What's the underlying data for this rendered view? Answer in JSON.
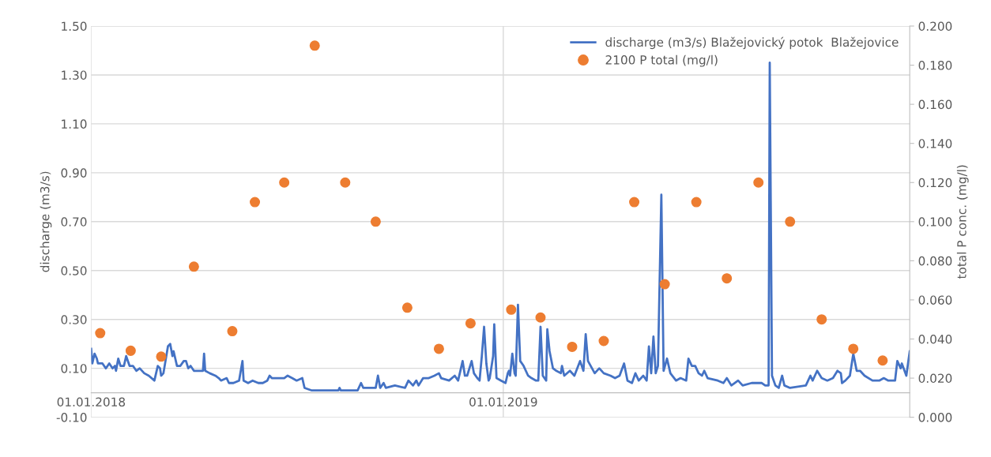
{
  "chart_data": {
    "type": "line",
    "ylabel": "discharge (m3/s)",
    "y2label": "total P conc. (mg/l)",
    "xlim": [
      "2018-01-01",
      "2019-12-27"
    ],
    "xticks": [
      {
        "value": "2018-01-01",
        "label": "01.01.2018"
      },
      {
        "value": "2019-01-01",
        "label": "01.01.2019"
      }
    ],
    "ylim": [
      -0.1,
      1.5
    ],
    "yticks": [
      {
        "value": -0.1,
        "label": "-0.10"
      },
      {
        "value": 0.1,
        "label": "0.10"
      },
      {
        "value": 0.3,
        "label": "0.30"
      },
      {
        "value": 0.5,
        "label": "0.50"
      },
      {
        "value": 0.7,
        "label": "0.70"
      },
      {
        "value": 0.9,
        "label": "0.90"
      },
      {
        "value": 1.1,
        "label": "1.10"
      },
      {
        "value": 1.3,
        "label": "1.30"
      },
      {
        "value": 1.5,
        "label": "1.50"
      }
    ],
    "y2lim": [
      0,
      0.2
    ],
    "y2ticks": [
      {
        "value": 0,
        "label": "0.000"
      },
      {
        "value": 0.02,
        "label": "0.020"
      },
      {
        "value": 0.04,
        "label": "0.040"
      },
      {
        "value": 0.06,
        "label": "0.060"
      },
      {
        "value": 0.08,
        "label": "0.080"
      },
      {
        "value": 0.1,
        "label": "0.100"
      },
      {
        "value": 0.12,
        "label": "0.120"
      },
      {
        "value": 0.14,
        "label": "0.140"
      },
      {
        "value": 0.16,
        "label": "0.160"
      },
      {
        "value": 0.18,
        "label": "0.180"
      },
      {
        "value": 0.2,
        "label": "0.200"
      }
    ],
    "grid": true,
    "legend": "top right",
    "series": [
      {
        "name": "discharge (m3/s) Blažejovický potok  Blažejovice",
        "color": "#4472c4",
        "marker": "none",
        "line_style": "solid",
        "x": [
          "2018-01-01",
          "2018-01-02",
          "2018-01-04",
          "2018-01-06",
          "2018-01-07",
          "2018-01-11",
          "2018-01-14",
          "2018-01-17",
          "2018-01-20",
          "2018-01-22",
          "2018-01-23",
          "2018-01-25",
          "2018-01-27",
          "2018-01-30",
          "2018-02-01",
          "2018-02-04",
          "2018-02-07",
          "2018-02-10",
          "2018-02-13",
          "2018-02-17",
          "2018-02-21",
          "2018-02-26",
          "2018-03-01",
          "2018-03-03",
          "2018-03-04",
          "2018-03-06",
          "2018-03-10",
          "2018-03-12",
          "2018-03-14",
          "2018-03-15",
          "2018-03-18",
          "2018-03-21",
          "2018-03-24",
          "2018-03-26",
          "2018-03-28",
          "2018-03-30",
          "2018-04-02",
          "2018-04-05",
          "2018-04-10",
          "2018-04-11",
          "2018-04-12",
          "2018-04-16",
          "2018-04-21",
          "2018-04-24",
          "2018-04-26",
          "2018-05-01",
          "2018-05-03",
          "2018-05-07",
          "2018-05-12",
          "2018-05-15",
          "2018-05-16",
          "2018-05-20",
          "2018-05-24",
          "2018-05-29",
          "2018-06-02",
          "2018-06-06",
          "2018-06-08",
          "2018-06-10",
          "2018-06-16",
          "2018-06-21",
          "2018-06-24",
          "2018-06-28",
          "2018-07-02",
          "2018-07-07",
          "2018-07-09",
          "2018-07-15",
          "2018-07-22",
          "2018-07-28",
          "2018-08-02",
          "2018-08-08",
          "2018-08-09",
          "2018-08-10",
          "2018-08-16",
          "2018-08-25",
          "2018-08-28",
          "2018-08-30",
          "2018-09-05",
          "2018-09-10",
          "2018-09-12",
          "2018-09-14",
          "2018-09-17",
          "2018-09-19",
          "2018-09-27",
          "2018-10-06",
          "2018-10-09",
          "2018-10-13",
          "2018-10-16",
          "2018-10-18",
          "2018-10-22",
          "2018-10-27",
          "2018-11-01",
          "2018-11-05",
          "2018-11-07",
          "2018-11-14",
          "2018-11-19",
          "2018-11-22",
          "2018-11-26",
          "2018-11-28",
          "2018-11-30",
          "2018-12-04",
          "2018-12-06",
          "2018-12-09",
          "2018-12-11",
          "2018-12-13",
          "2018-12-15",
          "2018-12-17",
          "2018-12-19",
          "2018-12-20",
          "2018-12-23",
          "2018-12-24",
          "2018-12-26",
          "2018-12-30",
          "2019-01-03",
          "2019-01-05",
          "2019-01-06",
          "2019-01-07",
          "2019-01-09",
          "2019-01-11",
          "2019-01-12",
          "2019-01-14",
          "2019-01-16",
          "2019-01-19",
          "2019-01-23",
          "2019-01-26",
          "2019-01-30",
          "2019-02-01",
          "2019-02-03",
          "2019-02-05",
          "2019-02-08",
          "2019-02-09",
          "2019-02-11",
          "2019-02-14",
          "2019-02-17",
          "2019-02-21",
          "2019-02-22",
          "2019-02-24",
          "2019-03-01",
          "2019-03-05",
          "2019-03-10",
          "2019-03-13",
          "2019-03-15",
          "2019-03-17",
          "2019-03-23",
          "2019-03-27",
          "2019-03-31",
          "2019-04-06",
          "2019-04-10",
          "2019-04-14",
          "2019-04-18",
          "2019-04-21",
          "2019-04-25",
          "2019-04-28",
          "2019-05-01",
          "2019-05-05",
          "2019-05-08",
          "2019-05-10",
          "2019-05-12",
          "2019-05-14",
          "2019-05-16",
          "2019-05-18",
          "2019-05-21",
          "2019-05-23",
          "2019-05-26",
          "2019-05-29",
          "2019-06-03",
          "2019-06-07",
          "2019-06-12",
          "2019-06-14",
          "2019-06-17",
          "2019-06-20",
          "2019-06-23",
          "2019-06-26",
          "2019-06-28",
          "2019-07-01",
          "2019-07-10",
          "2019-07-15",
          "2019-07-18",
          "2019-07-22",
          "2019-07-28",
          "2019-08-01",
          "2019-08-09",
          "2019-08-18",
          "2019-08-21",
          "2019-08-24",
          "2019-08-25",
          "2019-08-27",
          "2019-08-30",
          "2019-09-02",
          "2019-09-05",
          "2019-09-07",
          "2019-09-12",
          "2019-09-26",
          "2019-09-30",
          "2019-10-02",
          "2019-10-06",
          "2019-10-10",
          "2019-10-15",
          "2019-10-20",
          "2019-10-24",
          "2019-10-27",
          "2019-10-28",
          "2019-10-31",
          "2019-11-04",
          "2019-11-07",
          "2019-11-10",
          "2019-11-13",
          "2019-11-17",
          "2019-11-24",
          "2019-11-30",
          "2019-12-04",
          "2019-12-08",
          "2019-12-14",
          "2019-12-16",
          "2019-12-19",
          "2019-12-20",
          "2019-12-24",
          "2019-12-27"
        ],
        "values": [
          0.18,
          0.12,
          0.16,
          0.14,
          0.12,
          0.12,
          0.1,
          0.12,
          0.1,
          0.11,
          0.09,
          0.14,
          0.11,
          0.11,
          0.15,
          0.11,
          0.11,
          0.09,
          0.1,
          0.08,
          0.07,
          0.05,
          0.11,
          0.1,
          0.07,
          0.08,
          0.19,
          0.2,
          0.15,
          0.17,
          0.11,
          0.11,
          0.13,
          0.13,
          0.1,
          0.11,
          0.09,
          0.09,
          0.09,
          0.16,
          0.09,
          0.08,
          0.07,
          0.06,
          0.05,
          0.06,
          0.04,
          0.04,
          0.05,
          0.13,
          0.05,
          0.04,
          0.05,
          0.04,
          0.04,
          0.05,
          0.07,
          0.06,
          0.06,
          0.06,
          0.07,
          0.06,
          0.05,
          0.06,
          0.02,
          0.01,
          0.01,
          0.01,
          0.01,
          0.01,
          0.02,
          0.01,
          0.01,
          0.01,
          0.04,
          0.02,
          0.02,
          0.02,
          0.07,
          0.02,
          0.04,
          0.02,
          0.03,
          0.02,
          0.05,
          0.03,
          0.05,
          0.03,
          0.06,
          0.06,
          0.07,
          0.08,
          0.06,
          0.05,
          0.07,
          0.05,
          0.13,
          0.07,
          0.07,
          0.13,
          0.08,
          0.06,
          0.05,
          0.15,
          0.27,
          0.12,
          0.05,
          0.06,
          0.15,
          0.28,
          0.06,
          0.05,
          0.04,
          0.08,
          0.09,
          0.07,
          0.16,
          0.08,
          0.07,
          0.36,
          0.13,
          0.11,
          0.07,
          0.06,
          0.05,
          0.05,
          0.27,
          0.07,
          0.05,
          0.26,
          0.17,
          0.1,
          0.09,
          0.08,
          0.11,
          0.07,
          0.09,
          0.07,
          0.13,
          0.09,
          0.24,
          0.13,
          0.08,
          0.1,
          0.08,
          0.07,
          0.06,
          0.07,
          0.12,
          0.05,
          0.04,
          0.08,
          0.05,
          0.07,
          0.05,
          0.19,
          0.08,
          0.23,
          0.08,
          0.11,
          0.81,
          0.09,
          0.14,
          0.08,
          0.05,
          0.06,
          0.05,
          0.14,
          0.11,
          0.11,
          0.08,
          0.07,
          0.09,
          0.06,
          0.05,
          0.04,
          0.06,
          0.03,
          0.05,
          0.03,
          0.04,
          0.04,
          0.03,
          0.03,
          1.35,
          0.07,
          0.03,
          0.02,
          0.07,
          0.03,
          0.02,
          0.03,
          0.07,
          0.05,
          0.09,
          0.06,
          0.05,
          0.06,
          0.09,
          0.08,
          0.04,
          0.05,
          0.07,
          0.16,
          0.09,
          0.09,
          0.07,
          0.05,
          0.05,
          0.06,
          0.05,
          0.05,
          0.13,
          0.1,
          0.12,
          0.07,
          0.17
        ]
      },
      {
        "name": "2100 P total (mg/l)",
        "type": "scatter",
        "axis": "y2",
        "color": "#ed7d31",
        "marker": "circle",
        "x": [
          "2018-01-09",
          "2018-02-05",
          "2018-03-04",
          "2018-04-02",
          "2018-05-06",
          "2018-05-26",
          "2018-06-21",
          "2018-07-18",
          "2018-08-14",
          "2018-09-10",
          "2018-10-08",
          "2018-11-05",
          "2018-12-03",
          "2019-01-08",
          "2019-02-03",
          "2019-03-03",
          "2019-03-31",
          "2019-04-27",
          "2019-05-24",
          "2019-06-21",
          "2019-07-18",
          "2019-08-15",
          "2019-09-12",
          "2019-10-10",
          "2019-11-07",
          "2019-12-03"
        ],
        "values": [
          0.043,
          0.034,
          0.031,
          0.077,
          0.044,
          0.11,
          0.12,
          0.19,
          0.12,
          0.1,
          0.056,
          0.035,
          0.048,
          0.055,
          0.051,
          0.036,
          0.039,
          0.11,
          0.068,
          0.11,
          0.071,
          0.12,
          0.1,
          0.05,
          0.035,
          0.029
        ]
      }
    ]
  }
}
